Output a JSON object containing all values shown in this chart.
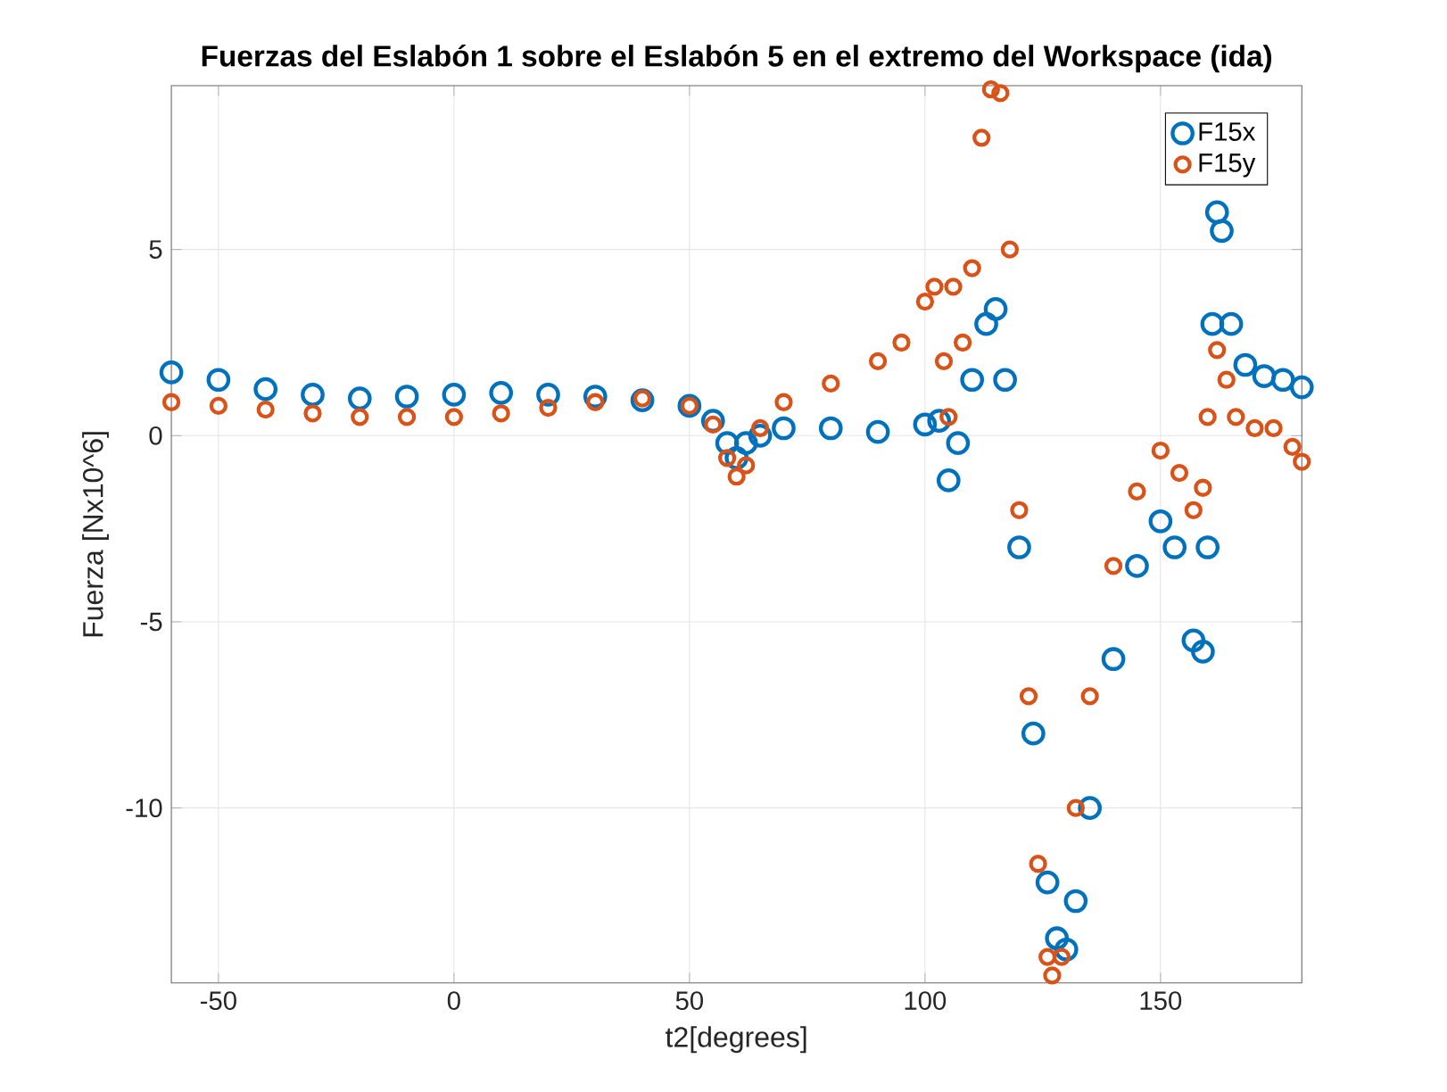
{
  "chart_data": {
    "type": "scatter",
    "title": "Fuerzas del Eslabón 1 sobre el Eslabón 5 en el extremo del Workspace (ida)",
    "xlabel": "t2[degrees]",
    "ylabel": "Fuerza [Nx10^6]",
    "xlim": [
      -60,
      180
    ],
    "ylim": [
      -14.7,
      9.4
    ],
    "xticks": [
      -50,
      0,
      50,
      100,
      150
    ],
    "yticks": [
      -10,
      -5,
      0,
      5
    ],
    "grid": true,
    "legend": "top right",
    "marker": "circle",
    "series": [
      {
        "name": "F15x",
        "color": "#0072bd",
        "x": [
          -60,
          -50,
          -40,
          -30,
          -20,
          -10,
          0,
          10,
          20,
          30,
          40,
          50,
          55,
          58,
          60,
          62,
          65,
          70,
          80,
          90,
          100,
          103,
          105,
          107,
          110,
          113,
          115,
          117,
          120,
          123,
          126,
          128,
          130,
          132,
          135,
          140,
          145,
          150,
          153,
          157,
          159,
          160,
          161,
          162,
          163,
          165,
          168,
          172,
          176,
          180
        ],
        "values": [
          1.7,
          1.5,
          1.25,
          1.1,
          1.0,
          1.05,
          1.1,
          1.15,
          1.1,
          1.05,
          0.95,
          0.8,
          0.4,
          -0.2,
          -0.6,
          -0.2,
          0.0,
          0.2,
          0.2,
          0.1,
          0.3,
          0.4,
          -1.2,
          -0.2,
          1.5,
          3.0,
          3.4,
          1.5,
          -3,
          -8,
          -12,
          -13.5,
          -13.8,
          -12.5,
          -10,
          -6,
          -3.5,
          -2.3,
          -3,
          -5.5,
          -5.8,
          -3,
          3,
          6,
          5.5,
          3,
          1.9,
          1.6,
          1.5,
          1.3
        ]
      },
      {
        "name": "F15y",
        "color": "#d95319",
        "x": [
          -60,
          -50,
          -40,
          -30,
          -20,
          -10,
          0,
          10,
          20,
          30,
          40,
          50,
          55,
          58,
          60,
          62,
          65,
          70,
          80,
          90,
          95,
          100,
          102,
          104,
          105,
          106,
          108,
          110,
          112,
          114,
          116,
          118,
          120,
          122,
          124,
          126,
          127,
          129,
          132,
          135,
          140,
          145,
          150,
          154,
          157,
          159,
          160,
          162,
          164,
          166,
          170,
          174,
          178,
          180
        ],
        "values": [
          0.9,
          0.8,
          0.7,
          0.6,
          0.5,
          0.5,
          0.5,
          0.6,
          0.75,
          0.9,
          1.0,
          0.8,
          0.3,
          -0.6,
          -1.1,
          -0.8,
          0.2,
          0.9,
          1.4,
          2.0,
          2.5,
          3.6,
          4.0,
          2.0,
          0.5,
          4.0,
          2.5,
          4.5,
          8,
          9.3,
          9.2,
          5,
          -2,
          -7,
          -11.5,
          -14,
          -14.5,
          -14,
          -10,
          -7,
          -3.5,
          -1.5,
          -0.4,
          -1.0,
          -2.0,
          -1.4,
          0.5,
          2.3,
          1.5,
          0.5,
          0.2,
          0.2,
          -0.3,
          -0.7
        ]
      }
    ]
  }
}
